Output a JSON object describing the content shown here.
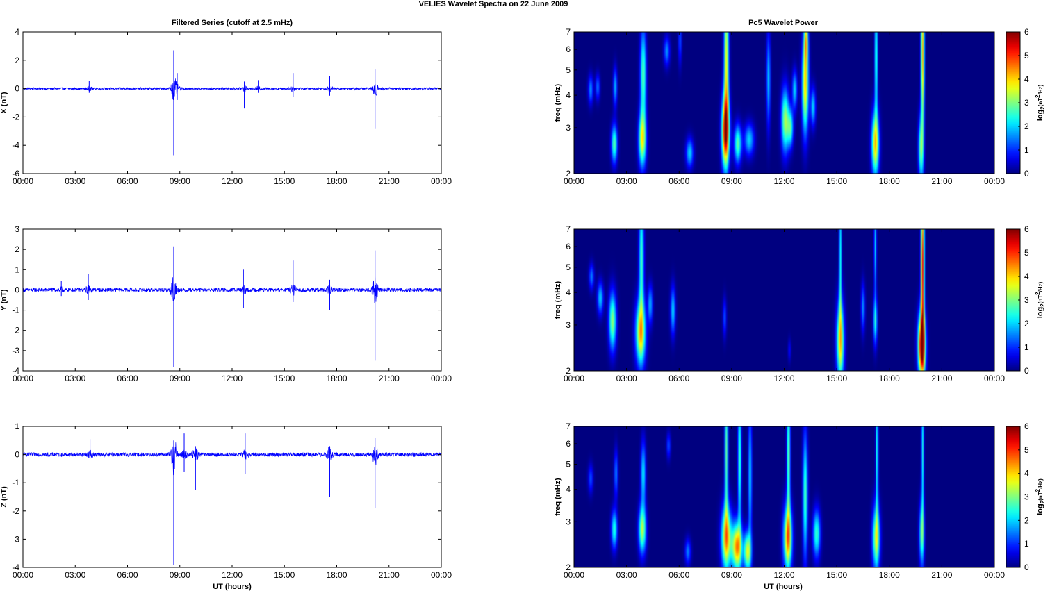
{
  "figure": {
    "suptitle": "VELIES Wavelet Spectra on 22 June      2009",
    "left_title": "Filtered Series (cutoff at 2.5 mHz)",
    "right_title": "Pc5 Wavelet Power",
    "xlabel": "UT (hours)"
  },
  "chart_data": [
    {
      "type": "line",
      "panel": "X",
      "ylabel": "X (nT)",
      "xlim": [
        0,
        24
      ],
      "ylim": [
        -6,
        4
      ],
      "xticks": [
        "00:00",
        "03:00",
        "06:00",
        "09:00",
        "12:00",
        "15:00",
        "18:00",
        "21:00",
        "00:00"
      ],
      "yticks": [
        "-6",
        "-4",
        "-2",
        "0",
        "2",
        "4"
      ],
      "color": "#0000ff",
      "noise_amplitude": 0.08,
      "events": [
        {
          "t": 3.8,
          "pos": 0.55,
          "neg": -0.3
        },
        {
          "t": 8.65,
          "pos": 2.7,
          "neg": -4.7
        },
        {
          "t": 8.85,
          "pos": 1.1,
          "neg": -0.8
        },
        {
          "t": 12.7,
          "pos": 0.5,
          "neg": -1.4
        },
        {
          "t": 13.5,
          "pos": 0.6,
          "neg": -0.3
        },
        {
          "t": 15.5,
          "pos": 1.1,
          "neg": -0.6
        },
        {
          "t": 17.6,
          "pos": 0.9,
          "neg": -0.5
        },
        {
          "t": 20.2,
          "pos": 1.35,
          "neg": -2.85
        }
      ]
    },
    {
      "type": "line",
      "panel": "Y",
      "ylabel": "Y (nT)",
      "xlim": [
        0,
        24
      ],
      "ylim": [
        -4,
        3
      ],
      "xticks": [
        "00:00",
        "03:00",
        "06:00",
        "09:00",
        "12:00",
        "15:00",
        "18:00",
        "21:00",
        "00:00"
      ],
      "yticks": [
        "-4",
        "-3",
        "-2",
        "-1",
        "0",
        "1",
        "2",
        "3"
      ],
      "color": "#0000ff",
      "noise_amplitude": 0.1,
      "events": [
        {
          "t": 2.2,
          "pos": 0.45,
          "neg": -0.3
        },
        {
          "t": 3.75,
          "pos": 0.8,
          "neg": -0.5
        },
        {
          "t": 8.65,
          "pos": 2.15,
          "neg": -3.8
        },
        {
          "t": 12.65,
          "pos": 1.0,
          "neg": -0.9
        },
        {
          "t": 15.5,
          "pos": 1.45,
          "neg": -0.6
        },
        {
          "t": 17.6,
          "pos": 0.5,
          "neg": -1.0
        },
        {
          "t": 20.2,
          "pos": 1.95,
          "neg": -3.5
        }
      ]
    },
    {
      "type": "line",
      "panel": "Z",
      "ylabel": "Z (nT)",
      "xlim": [
        0,
        24
      ],
      "ylim": [
        -4,
        1
      ],
      "xticks": [
        "00:00",
        "03:00",
        "06:00",
        "09:00",
        "12:00",
        "15:00",
        "18:00",
        "21:00",
        "00:00"
      ],
      "yticks": [
        "-4",
        "-3",
        "-2",
        "-1",
        "0",
        "1"
      ],
      "color": "#0000ff",
      "noise_amplitude": 0.07,
      "events": [
        {
          "t": 3.85,
          "pos": 0.55,
          "neg": -0.15
        },
        {
          "t": 8.65,
          "pos": 0.5,
          "neg": -3.9
        },
        {
          "t": 9.25,
          "pos": 0.75,
          "neg": -0.6
        },
        {
          "t": 9.9,
          "pos": 0.3,
          "neg": -1.25
        },
        {
          "t": 12.75,
          "pos": 0.75,
          "neg": -0.7
        },
        {
          "t": 17.6,
          "pos": 0.3,
          "neg": -1.5
        },
        {
          "t": 20.2,
          "pos": 0.6,
          "neg": -1.9
        }
      ]
    },
    {
      "type": "heatmap",
      "panel": "X",
      "ylabel": "freq (mHz)",
      "colorbar_label": "log2(nT^2/Hz)",
      "colormap": "jet",
      "xlim": [
        0,
        24
      ],
      "ylim": [
        2,
        7
      ],
      "yscale": "log",
      "clim": [
        0,
        6
      ],
      "xticks": [
        "00:00",
        "03:00",
        "06:00",
        "09:00",
        "12:00",
        "15:00",
        "18:00",
        "21:00",
        "00:00"
      ],
      "yticks": [
        "2",
        "3",
        "4",
        "5",
        "6",
        "7"
      ],
      "cbticks": [
        "0",
        "1",
        "2",
        "3",
        "4",
        "5",
        "6"
      ],
      "blobs": [
        {
          "t": 0.95,
          "f": 4.2,
          "w": 0.1,
          "h": 0.09,
          "p": 1.6
        },
        {
          "t": 1.35,
          "f": 4.3,
          "w": 0.09,
          "h": 0.08,
          "p": 1.4
        },
        {
          "t": 2.3,
          "f": 2.6,
          "w": 0.12,
          "h": 0.12,
          "p": 2.8
        },
        {
          "t": 2.35,
          "f": 4.3,
          "w": 0.08,
          "h": 0.12,
          "p": 1.8
        },
        {
          "t": 3.9,
          "f": 2.7,
          "w": 0.15,
          "h": 0.17,
          "p": 3.6
        },
        {
          "t": 3.95,
          "f": 4.8,
          "w": 0.12,
          "h": 0.3,
          "p": 2.8
        },
        {
          "t": 5.3,
          "f": 5.9,
          "w": 0.12,
          "h": 0.09,
          "p": 1.6
        },
        {
          "t": 6.6,
          "f": 2.4,
          "w": 0.15,
          "h": 0.09,
          "p": 2.0
        },
        {
          "t": 6.05,
          "f": 6.5,
          "w": 0.07,
          "h": 0.15,
          "p": 1.2
        },
        {
          "t": 8.65,
          "f": 2.9,
          "w": 0.15,
          "h": 0.22,
          "p": 5.6
        },
        {
          "t": 8.7,
          "f": 5.5,
          "w": 0.1,
          "h": 0.45,
          "p": 3.6
        },
        {
          "t": 9.35,
          "f": 2.6,
          "w": 0.15,
          "h": 0.12,
          "p": 2.8
        },
        {
          "t": 10.0,
          "f": 2.7,
          "w": 0.2,
          "h": 0.1,
          "p": 2.0
        },
        {
          "t": 11.1,
          "f": 4.6,
          "w": 0.08,
          "h": 0.3,
          "p": 1.9
        },
        {
          "t": 12.05,
          "f": 3.2,
          "w": 0.15,
          "h": 0.2,
          "p": 3.2
        },
        {
          "t": 12.35,
          "f": 3.0,
          "w": 0.12,
          "h": 0.12,
          "p": 2.5
        },
        {
          "t": 12.6,
          "f": 4.2,
          "w": 0.1,
          "h": 0.12,
          "p": 2.0
        },
        {
          "t": 13.2,
          "f": 4.4,
          "w": 0.13,
          "h": 0.3,
          "p": 4.0
        },
        {
          "t": 13.25,
          "f": 6.6,
          "w": 0.08,
          "h": 0.15,
          "p": 2.8
        },
        {
          "t": 13.65,
          "f": 3.6,
          "w": 0.1,
          "h": 0.12,
          "p": 2.0
        },
        {
          "t": 17.2,
          "f": 2.6,
          "w": 0.15,
          "h": 0.2,
          "p": 3.9
        },
        {
          "t": 17.25,
          "f": 5.6,
          "w": 0.06,
          "h": 0.4,
          "p": 2.6
        },
        {
          "t": 19.8,
          "f": 2.5,
          "w": 0.1,
          "h": 0.2,
          "p": 2.8
        },
        {
          "t": 19.9,
          "f": 5.8,
          "w": 0.07,
          "h": 0.5,
          "p": 4.2
        }
      ]
    },
    {
      "type": "heatmap",
      "panel": "Y",
      "ylabel": "freq (mHz)",
      "colorbar_label": "log2(nT^2/Hz)",
      "colormap": "jet",
      "xlim": [
        0,
        24
      ],
      "ylim": [
        2,
        7
      ],
      "yscale": "log",
      "clim": [
        0,
        6
      ],
      "xticks": [
        "00:00",
        "03:00",
        "06:00",
        "09:00",
        "12:00",
        "15:00",
        "18:00",
        "21:00",
        "00:00"
      ],
      "yticks": [
        "2",
        "3",
        "4",
        "5",
        "6",
        "7"
      ],
      "cbticks": [
        "0",
        "1",
        "2",
        "3",
        "4",
        "5",
        "6"
      ],
      "blobs": [
        {
          "t": 1.0,
          "f": 4.6,
          "w": 0.1,
          "h": 0.08,
          "p": 1.5
        },
        {
          "t": 1.5,
          "f": 3.8,
          "w": 0.12,
          "h": 0.1,
          "p": 2.0
        },
        {
          "t": 2.2,
          "f": 3.1,
          "w": 0.15,
          "h": 0.18,
          "p": 3.1
        },
        {
          "t": 3.8,
          "f": 2.8,
          "w": 0.2,
          "h": 0.2,
          "p": 3.9
        },
        {
          "t": 3.85,
          "f": 5.4,
          "w": 0.1,
          "h": 0.4,
          "p": 2.6
        },
        {
          "t": 4.35,
          "f": 3.6,
          "w": 0.1,
          "h": 0.12,
          "p": 1.8
        },
        {
          "t": 5.65,
          "f": 3.4,
          "w": 0.1,
          "h": 0.15,
          "p": 2.0
        },
        {
          "t": 8.6,
          "f": 3.2,
          "w": 0.07,
          "h": 0.12,
          "p": 1.3
        },
        {
          "t": 12.3,
          "f": 2.4,
          "w": 0.06,
          "h": 0.07,
          "p": 0.8
        },
        {
          "t": 15.2,
          "f": 2.6,
          "w": 0.15,
          "h": 0.25,
          "p": 3.8
        },
        {
          "t": 15.2,
          "f": 5.5,
          "w": 0.05,
          "h": 0.45,
          "p": 2.4
        },
        {
          "t": 16.5,
          "f": 3.5,
          "w": 0.08,
          "h": 0.15,
          "p": 1.6
        },
        {
          "t": 17.2,
          "f": 3.1,
          "w": 0.08,
          "h": 0.15,
          "p": 2.3
        },
        {
          "t": 17.2,
          "f": 6.0,
          "w": 0.05,
          "h": 0.3,
          "p": 2.0
        },
        {
          "t": 19.85,
          "f": 2.5,
          "w": 0.15,
          "h": 0.2,
          "p": 6.0
        },
        {
          "t": 19.9,
          "f": 5.0,
          "w": 0.07,
          "h": 0.5,
          "p": 5.3
        }
      ]
    },
    {
      "type": "heatmap",
      "panel": "Z",
      "ylabel": "freq (mHz)",
      "colorbar_label": "log2(nT^2/Hz)",
      "colormap": "jet",
      "xlim": [
        0,
        24
      ],
      "ylim": [
        2,
        7
      ],
      "yscale": "log",
      "clim": [
        0,
        6
      ],
      "xticks": [
        "00:00",
        "03:00",
        "06:00",
        "09:00",
        "12:00",
        "15:00",
        "18:00",
        "21:00",
        "00:00"
      ],
      "yticks": [
        "2",
        "3",
        "4",
        "5",
        "6",
        "7"
      ],
      "cbticks": [
        "0",
        "1",
        "2",
        "3",
        "4",
        "5",
        "6"
      ],
      "blobs": [
        {
          "t": 0.95,
          "f": 4.4,
          "w": 0.1,
          "h": 0.09,
          "p": 1.2
        },
        {
          "t": 2.3,
          "f": 2.8,
          "w": 0.12,
          "h": 0.12,
          "p": 2.5
        },
        {
          "t": 2.4,
          "f": 4.6,
          "w": 0.08,
          "h": 0.15,
          "p": 1.5
        },
        {
          "t": 3.9,
          "f": 2.8,
          "w": 0.15,
          "h": 0.15,
          "p": 3.3
        },
        {
          "t": 3.95,
          "f": 4.6,
          "w": 0.1,
          "h": 0.2,
          "p": 2.2
        },
        {
          "t": 5.4,
          "f": 5.9,
          "w": 0.08,
          "h": 0.08,
          "p": 1.2
        },
        {
          "t": 6.5,
          "f": 2.3,
          "w": 0.12,
          "h": 0.08,
          "p": 1.5
        },
        {
          "t": 8.7,
          "f": 2.6,
          "w": 0.2,
          "h": 0.2,
          "p": 4.2
        },
        {
          "t": 8.7,
          "f": 5.6,
          "w": 0.07,
          "h": 0.45,
          "p": 2.8
        },
        {
          "t": 9.3,
          "f": 2.4,
          "w": 0.2,
          "h": 0.15,
          "p": 4.5
        },
        {
          "t": 9.45,
          "f": 5.2,
          "w": 0.07,
          "h": 0.45,
          "p": 2.8
        },
        {
          "t": 9.9,
          "f": 2.3,
          "w": 0.15,
          "h": 0.12,
          "p": 3.5
        },
        {
          "t": 10.05,
          "f": 4.5,
          "w": 0.07,
          "h": 0.45,
          "p": 2.2
        },
        {
          "t": 12.2,
          "f": 2.6,
          "w": 0.17,
          "h": 0.2,
          "p": 4.3
        },
        {
          "t": 12.25,
          "f": 5.4,
          "w": 0.07,
          "h": 0.45,
          "p": 3.1
        },
        {
          "t": 13.2,
          "f": 3.8,
          "w": 0.1,
          "h": 0.4,
          "p": 2.7
        },
        {
          "t": 13.85,
          "f": 2.7,
          "w": 0.15,
          "h": 0.15,
          "p": 2.6
        },
        {
          "t": 17.25,
          "f": 2.6,
          "w": 0.15,
          "h": 0.2,
          "p": 3.4
        },
        {
          "t": 17.3,
          "f": 5.6,
          "w": 0.05,
          "h": 0.45,
          "p": 2.4
        },
        {
          "t": 19.85,
          "f": 2.7,
          "w": 0.1,
          "h": 0.2,
          "p": 2.7
        },
        {
          "t": 19.9,
          "f": 5.6,
          "w": 0.05,
          "h": 0.45,
          "p": 2.4
        }
      ]
    }
  ]
}
